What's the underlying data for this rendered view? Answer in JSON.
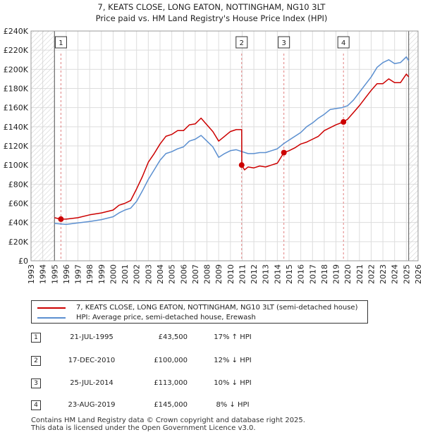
{
  "chart_data": {
    "type": "line",
    "title": "7, KEATS CLOSE, LONG EATON, NOTTINGHAM, NG10 3LT",
    "subtitle": "Price paid vs. HM Land Registry's House Price Index (HPI)",
    "xlim": [
      1993,
      2026
    ],
    "ylim": [
      0,
      240000
    ],
    "data_start": 1995.0,
    "data_end": 2025.2,
    "x_ticks": [
      "1993",
      "1994",
      "1995",
      "1996",
      "1997",
      "1998",
      "1999",
      "2000",
      "2001",
      "2002",
      "2003",
      "2004",
      "2005",
      "2006",
      "2007",
      "2008",
      "2009",
      "2010",
      "2011",
      "2012",
      "2013",
      "2014",
      "2015",
      "2016",
      "2017",
      "2018",
      "2019",
      "2020",
      "2021",
      "2022",
      "2023",
      "2024",
      "2025",
      "2026"
    ],
    "y_ticks": [
      0,
      20000,
      40000,
      60000,
      80000,
      100000,
      120000,
      140000,
      160000,
      180000,
      200000,
      220000,
      240000
    ],
    "y_tick_labels": [
      "£0",
      "£20K",
      "£40K",
      "£60K",
      "£80K",
      "£100K",
      "£120K",
      "£140K",
      "£160K",
      "£180K",
      "£200K",
      "£220K",
      "£240K"
    ],
    "series": [
      {
        "name": "7, KEATS CLOSE, LONG EATON, NOTTINGHAM, NG10 3LT (semi-detached house)",
        "color": "#cc0000",
        "points": [
          [
            1995.0,
            45000
          ],
          [
            1995.55,
            43500
          ],
          [
            1996.0,
            43500
          ],
          [
            1997.0,
            45000
          ],
          [
            1998.0,
            48000
          ],
          [
            1999.0,
            50000
          ],
          [
            2000.0,
            53000
          ],
          [
            2000.5,
            58000
          ],
          [
            2001.0,
            60000
          ],
          [
            2001.5,
            63000
          ],
          [
            2002.0,
            75000
          ],
          [
            2002.5,
            88000
          ],
          [
            2003.0,
            103000
          ],
          [
            2003.5,
            112000
          ],
          [
            2004.0,
            122000
          ],
          [
            2004.5,
            130000
          ],
          [
            2005.0,
            132000
          ],
          [
            2005.5,
            136000
          ],
          [
            2006.0,
            136000
          ],
          [
            2006.5,
            142000
          ],
          [
            2007.0,
            143000
          ],
          [
            2007.5,
            149000
          ],
          [
            2008.0,
            142000
          ],
          [
            2008.5,
            135000
          ],
          [
            2009.0,
            125000
          ],
          [
            2009.5,
            130000
          ],
          [
            2010.0,
            135000
          ],
          [
            2010.5,
            137000
          ],
          [
            2010.96,
            137000
          ],
          [
            2010.97,
            100000
          ],
          [
            2011.2,
            95000
          ],
          [
            2011.5,
            98000
          ],
          [
            2012.0,
            97000
          ],
          [
            2012.5,
            99000
          ],
          [
            2013.0,
            98000
          ],
          [
            2013.5,
            100000
          ],
          [
            2014.0,
            102000
          ],
          [
            2014.56,
            113000
          ],
          [
            2015.0,
            115000
          ],
          [
            2015.5,
            118000
          ],
          [
            2016.0,
            122000
          ],
          [
            2016.5,
            124000
          ],
          [
            2017.0,
            127000
          ],
          [
            2017.5,
            130000
          ],
          [
            2018.0,
            136000
          ],
          [
            2018.5,
            139000
          ],
          [
            2019.0,
            142000
          ],
          [
            2019.64,
            145000
          ],
          [
            2020.0,
            148000
          ],
          [
            2020.5,
            155000
          ],
          [
            2021.0,
            162000
          ],
          [
            2021.5,
            170000
          ],
          [
            2022.0,
            178000
          ],
          [
            2022.5,
            185000
          ],
          [
            2023.0,
            185000
          ],
          [
            2023.5,
            190000
          ],
          [
            2024.0,
            186000
          ],
          [
            2024.5,
            186000
          ],
          [
            2025.0,
            195000
          ],
          [
            2025.2,
            192000
          ]
        ]
      },
      {
        "name": "HPI: Average price, semi-detached house, Erewash",
        "color": "#5b8fd0",
        "points": [
          [
            1995.0,
            39000
          ],
          [
            1996.0,
            38000
          ],
          [
            1997.0,
            39500
          ],
          [
            1998.0,
            41000
          ],
          [
            1999.0,
            43000
          ],
          [
            2000.0,
            46000
          ],
          [
            2000.5,
            50000
          ],
          [
            2001.0,
            53000
          ],
          [
            2001.5,
            55000
          ],
          [
            2002.0,
            62000
          ],
          [
            2002.5,
            73000
          ],
          [
            2003.0,
            85000
          ],
          [
            2003.5,
            95000
          ],
          [
            2004.0,
            105000
          ],
          [
            2004.5,
            112000
          ],
          [
            2005.0,
            114000
          ],
          [
            2005.5,
            117000
          ],
          [
            2006.0,
            119000
          ],
          [
            2006.5,
            125000
          ],
          [
            2007.0,
            127000
          ],
          [
            2007.5,
            131000
          ],
          [
            2008.0,
            125000
          ],
          [
            2008.5,
            119000
          ],
          [
            2009.0,
            108000
          ],
          [
            2009.5,
            112000
          ],
          [
            2010.0,
            115000
          ],
          [
            2010.5,
            116000
          ],
          [
            2011.0,
            114000
          ],
          [
            2011.5,
            112000
          ],
          [
            2012.0,
            112000
          ],
          [
            2012.5,
            113000
          ],
          [
            2013.0,
            113000
          ],
          [
            2013.5,
            115000
          ],
          [
            2014.0,
            117000
          ],
          [
            2014.5,
            122000
          ],
          [
            2015.0,
            126000
          ],
          [
            2015.5,
            130000
          ],
          [
            2016.0,
            134000
          ],
          [
            2016.5,
            140000
          ],
          [
            2017.0,
            144000
          ],
          [
            2017.5,
            149000
          ],
          [
            2018.0,
            153000
          ],
          [
            2018.5,
            158000
          ],
          [
            2019.0,
            159000
          ],
          [
            2019.5,
            160000
          ],
          [
            2020.0,
            162000
          ],
          [
            2020.5,
            168000
          ],
          [
            2021.0,
            176000
          ],
          [
            2021.5,
            184000
          ],
          [
            2022.0,
            192000
          ],
          [
            2022.5,
            202000
          ],
          [
            2023.0,
            207000
          ],
          [
            2023.5,
            210000
          ],
          [
            2024.0,
            206000
          ],
          [
            2024.5,
            207000
          ],
          [
            2025.0,
            213000
          ],
          [
            2025.2,
            209000
          ]
        ]
      }
    ],
    "sales": [
      {
        "label": "1",
        "x": 1995.55,
        "y": 43500
      },
      {
        "label": "2",
        "x": 2010.96,
        "y": 100000
      },
      {
        "label": "3",
        "x": 2014.56,
        "y": 113000
      },
      {
        "label": "4",
        "x": 2019.64,
        "y": 145000
      }
    ]
  },
  "legend": {
    "property_label": "7, KEATS CLOSE, LONG EATON, NOTTINGHAM, NG10 3LT (semi-detached house)",
    "hpi_label": "HPI: Average price, semi-detached house, Erewash"
  },
  "sales_table": [
    {
      "num": "1",
      "date": "21-JUL-1995",
      "price": "£43,500",
      "hpi": "17% ↑ HPI"
    },
    {
      "num": "2",
      "date": "17-DEC-2010",
      "price": "£100,000",
      "hpi": "12% ↓ HPI"
    },
    {
      "num": "3",
      "date": "25-JUL-2014",
      "price": "£113,000",
      "hpi": "10% ↓ HPI"
    },
    {
      "num": "4",
      "date": "23-AUG-2019",
      "price": "£145,000",
      "hpi": "8% ↓ HPI"
    }
  ],
  "footer": {
    "line1": "Contains HM Land Registry data © Crown copyright and database right 2025.",
    "line2": "This data is licensed under the Open Government Licence v3.0."
  },
  "colors": {
    "property": "#cc0000",
    "hpi": "#5b8fd0",
    "hatch": "#cccccc",
    "grid": "#dddddd",
    "vline": "#e08080"
  }
}
